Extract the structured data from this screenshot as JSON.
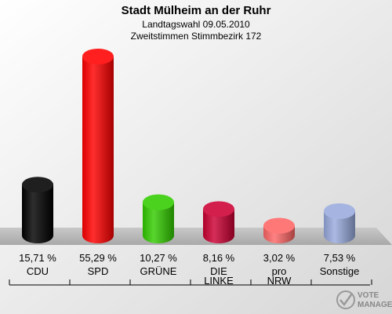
{
  "chart_data": {
    "type": "bar",
    "title": "Stadt Mülheim an der Ruhr",
    "subtitle_1": "Landtagswahl 09.05.2010",
    "subtitle_2": "Zweitstimmen Stimmbezirk 172",
    "categories": [
      "CDU",
      "SPD",
      "GRÜNE",
      "DIE LINKE",
      "pro NRW",
      "Sonstige"
    ],
    "category_lines": [
      [
        "CDU"
      ],
      [
        "SPD"
      ],
      [
        "GRÜNE"
      ],
      [
        "DIE",
        "LINKE"
      ],
      [
        "pro",
        "NRW"
      ],
      [
        "Sonstige"
      ]
    ],
    "values": [
      15.71,
      55.29,
      10.27,
      8.16,
      3.02,
      7.53
    ],
    "value_labels": [
      "15,71 %",
      "55,29 %",
      "10,27 %",
      "8,16 %",
      "3,02 %",
      "7,53 %"
    ],
    "colors": [
      "#000000",
      "#ff0000",
      "#33cc00",
      "#cc0033",
      "#ff6666",
      "#99aadd"
    ],
    "ylim": [
      0,
      55.29
    ],
    "grid": false,
    "legend": "none"
  },
  "logo": {
    "line1": "VOTE",
    "line2": "MANAGER"
  }
}
